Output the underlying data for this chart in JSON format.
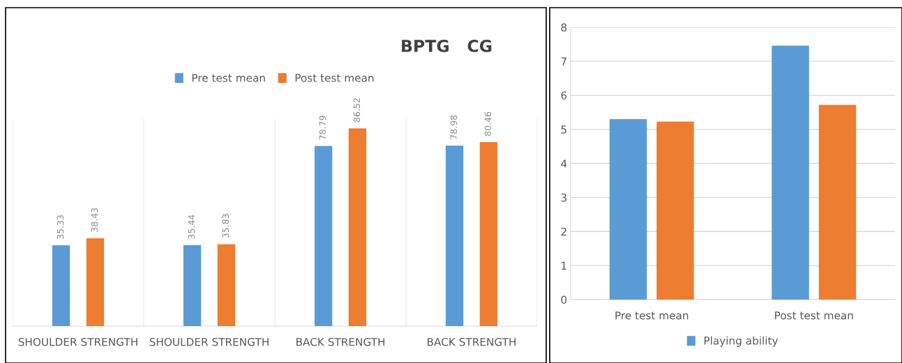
{
  "chart_data": [
    {
      "type": "bar",
      "title": "BPTG   CG",
      "categories": [
        "SHOULDER STRENGTH",
        "SHOULDER STRENGTH",
        "BACK STRENGTH",
        "BACK STRENGTH"
      ],
      "series": [
        {
          "name": "Pre test mean",
          "color": "#5b9bd5",
          "values": [
            35.33,
            35.44,
            78.79,
            78.98
          ]
        },
        {
          "name": "Post test mean",
          "color": "#ed7d31",
          "values": [
            38.43,
            35.83,
            86.52,
            80.46
          ]
        }
      ],
      "data_labels": true,
      "legend": "top",
      "grid": "x",
      "tick_labels": "x"
    },
    {
      "type": "bar",
      "categories": [
        "Pre test mean",
        "Post test mean"
      ],
      "series": [
        {
          "name": "Playing ability",
          "color": "#5b9bd5",
          "values": [
            5.3,
            7.46
          ]
        },
        {
          "color": "#ed7d31",
          "values": [
            5.23,
            5.72
          ]
        }
      ],
      "ylim": [
        0,
        8
      ],
      "yticks": [
        0,
        1,
        2,
        3,
        4,
        5,
        6,
        7,
        8
      ],
      "grid": "y",
      "legend": "bottom"
    }
  ]
}
